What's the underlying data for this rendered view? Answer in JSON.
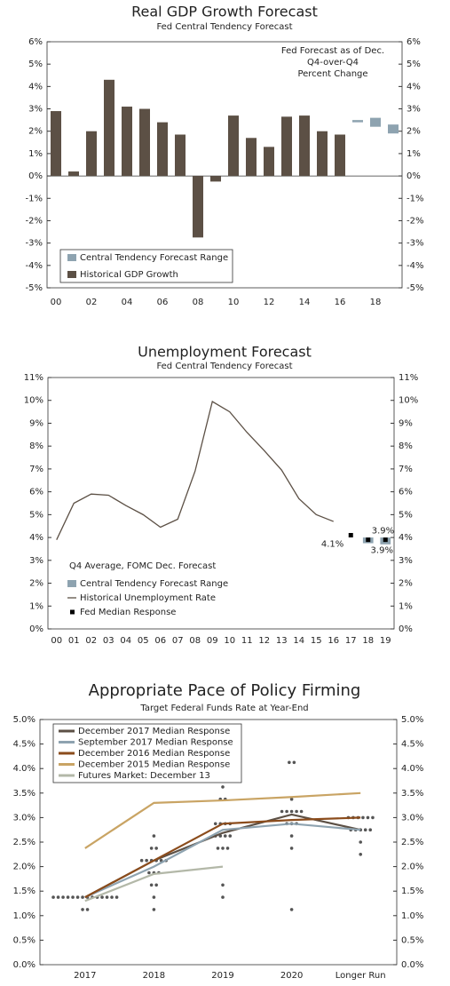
{
  "chart_data": [
    {
      "type": "bar",
      "title": "Real GDP Growth Forecast",
      "subtitle": "Fed Central Tendency Forecast",
      "annotation": [
        "Fed Forecast as of Dec.",
        "Q4-over-Q4",
        "Percent Change"
      ],
      "categories": [
        "00",
        null,
        "02",
        null,
        "04",
        null,
        "06",
        null,
        "08",
        null,
        "10",
        null,
        "12",
        null,
        "14",
        null,
        "16",
        null,
        "18",
        null
      ],
      "series": [
        {
          "name": "Central Tendency Forecast Range",
          "color": "#8ea3b0",
          "low": [
            null,
            null,
            null,
            null,
            null,
            null,
            null,
            null,
            null,
            null,
            null,
            null,
            null,
            null,
            null,
            null,
            null,
            2.4,
            2.2,
            1.9
          ],
          "high": [
            null,
            null,
            null,
            null,
            null,
            null,
            null,
            null,
            null,
            null,
            null,
            null,
            null,
            null,
            null,
            null,
            null,
            2.5,
            2.6,
            2.3
          ]
        },
        {
          "name": "Historical GDP Growth",
          "color": "#5c5045",
          "values": [
            2.9,
            0.2,
            2.0,
            4.3,
            3.1,
            3.0,
            2.4,
            1.85,
            -2.75,
            -0.25,
            2.7,
            1.7,
            1.3,
            2.65,
            2.7,
            2.0,
            1.85,
            null,
            null,
            null
          ]
        }
      ],
      "ylim": [
        -5,
        6
      ],
      "yticks": [
        {
          "value": -5,
          "label": "-5%"
        },
        {
          "value": -4,
          "label": "-4%"
        },
        {
          "value": -3,
          "label": "-3%"
        },
        {
          "value": -2,
          "label": "-2%"
        },
        {
          "value": -1,
          "label": "-1%"
        },
        {
          "value": 0,
          "label": "0%"
        },
        {
          "value": 1,
          "label": "1%"
        },
        {
          "value": 2,
          "label": "2%"
        },
        {
          "value": 3,
          "label": "3%"
        },
        {
          "value": 4,
          "label": "4%"
        },
        {
          "value": 5,
          "label": "5%"
        },
        {
          "value": 6,
          "label": "6%"
        }
      ]
    },
    {
      "type": "line",
      "title": "Unemployment Forecast",
      "subtitle": "Fed Central Tendency Forecast",
      "annotation": [
        "Q4 Average, FOMC Dec. Forecast"
      ],
      "categories": [
        "00",
        "01",
        "02",
        "03",
        "04",
        "05",
        "06",
        "07",
        "08",
        "09",
        "10",
        "11",
        "12",
        "13",
        "14",
        "15",
        "16",
        "17",
        "18",
        "19"
      ],
      "series": [
        {
          "name": "Central Tendency Forecast Range",
          "color": "#8ea3b0",
          "low": [
            null,
            null,
            null,
            null,
            null,
            null,
            null,
            null,
            null,
            null,
            null,
            null,
            null,
            null,
            null,
            null,
            null,
            null,
            3.75,
            3.7
          ],
          "high": [
            null,
            null,
            null,
            null,
            null,
            null,
            null,
            null,
            null,
            null,
            null,
            null,
            null,
            null,
            null,
            null,
            null,
            null,
            4.0,
            4.0
          ]
        },
        {
          "name": "Historical Unemployment Rate",
          "color": "#5c5045",
          "values": [
            3.9,
            5.5,
            5.9,
            5.85,
            5.4,
            5.0,
            4.45,
            4.8,
            6.9,
            9.95,
            9.5,
            8.6,
            7.8,
            6.95,
            5.7,
            5.0,
            4.7,
            null,
            null,
            null
          ]
        },
        {
          "name": "Fed Median Response",
          "color": "#000000",
          "style": "markers",
          "values": [
            null,
            null,
            null,
            null,
            null,
            null,
            null,
            null,
            null,
            null,
            null,
            null,
            null,
            null,
            null,
            null,
            null,
            4.1,
            3.9,
            3.9
          ],
          "value_labels": [
            null,
            null,
            null,
            null,
            null,
            null,
            null,
            null,
            null,
            null,
            null,
            null,
            null,
            null,
            null,
            null,
            null,
            "4.1%",
            "3.9%",
            "3.9%"
          ]
        }
      ],
      "ylim": [
        0,
        11
      ],
      "yticks": [
        {
          "value": 0,
          "label": "0%"
        },
        {
          "value": 1,
          "label": "1%"
        },
        {
          "value": 2,
          "label": "2%"
        },
        {
          "value": 3,
          "label": "3%"
        },
        {
          "value": 4,
          "label": "4%"
        },
        {
          "value": 5,
          "label": "5%"
        },
        {
          "value": 6,
          "label": "6%"
        },
        {
          "value": 7,
          "label": "7%"
        },
        {
          "value": 8,
          "label": "8%"
        },
        {
          "value": 9,
          "label": "9%"
        },
        {
          "value": 10,
          "label": "10%"
        },
        {
          "value": 11,
          "label": "11%"
        }
      ]
    },
    {
      "type": "line",
      "title": "Appropriate Pace of Policy Firming",
      "subtitle": "Target Federal Funds Rate at Year-End",
      "categories": [
        "2017",
        "2018",
        "2019",
        "2020",
        "Longer Run"
      ],
      "series": [
        {
          "name": "December 2017 Median Response",
          "color": "#5c5045",
          "values": [
            1.375,
            2.125,
            2.6875,
            3.0625,
            2.75
          ]
        },
        {
          "name": "September 2017 Median Response",
          "color": "#8ea3b0",
          "values": [
            1.375,
            2.0,
            2.75,
            2.875,
            2.75
          ]
        },
        {
          "name": "December 2016 Median Response",
          "color": "#8b4c1c",
          "values": [
            1.375,
            2.125,
            2.875,
            2.95,
            3.0
          ]
        },
        {
          "name": "December 2015 Median Response",
          "color": "#c9a464",
          "values": [
            2.375,
            3.3,
            3.35,
            3.42,
            3.5
          ]
        },
        {
          "name": "Futures Market: December 13",
          "color": "#b3b8a8",
          "values": [
            1.3,
            1.85,
            2.0,
            null,
            null
          ]
        }
      ],
      "dots": [
        [
          1.125,
          1.125,
          1.375,
          1.375,
          1.375,
          1.375,
          1.375,
          1.375,
          1.375,
          1.375,
          1.375,
          1.375,
          1.375,
          1.375,
          1.375,
          1.375
        ],
        [
          1.125,
          1.375,
          1.625,
          1.625,
          1.875,
          1.875,
          1.875,
          2.125,
          2.125,
          2.125,
          2.125,
          2.125,
          2.125,
          2.375,
          2.375,
          2.625
        ],
        [
          1.375,
          1.625,
          2.375,
          2.375,
          2.375,
          2.625,
          2.625,
          2.625,
          2.625,
          2.875,
          2.875,
          2.875,
          2.875,
          3.375,
          3.375,
          3.625
        ],
        [
          1.125,
          2.375,
          2.625,
          2.875,
          2.875,
          2.875,
          3.125,
          3.125,
          3.125,
          3.125,
          3.125,
          3.375,
          4.125,
          4.125
        ],
        [
          2.25,
          2.5,
          2.75,
          2.75,
          2.75,
          2.75,
          2.75,
          3.0,
          3.0,
          3.0,
          3.0,
          3.0,
          3.0
        ]
      ],
      "dot_color": "#555555",
      "ylim": [
        0,
        5
      ],
      "yticks": [
        {
          "value": 0,
          "label": "0.0%"
        },
        {
          "value": 0.5,
          "label": "0.5%"
        },
        {
          "value": 1,
          "label": "1.0%"
        },
        {
          "value": 1.5,
          "label": "1.5%"
        },
        {
          "value": 2,
          "label": "2.0%"
        },
        {
          "value": 2.5,
          "label": "2.5%"
        },
        {
          "value": 3,
          "label": "3.0%"
        },
        {
          "value": 3.5,
          "label": "3.5%"
        },
        {
          "value": 4,
          "label": "4.0%"
        },
        {
          "value": 4.5,
          "label": "4.5%"
        },
        {
          "value": 5,
          "label": "5.0%"
        }
      ]
    }
  ]
}
